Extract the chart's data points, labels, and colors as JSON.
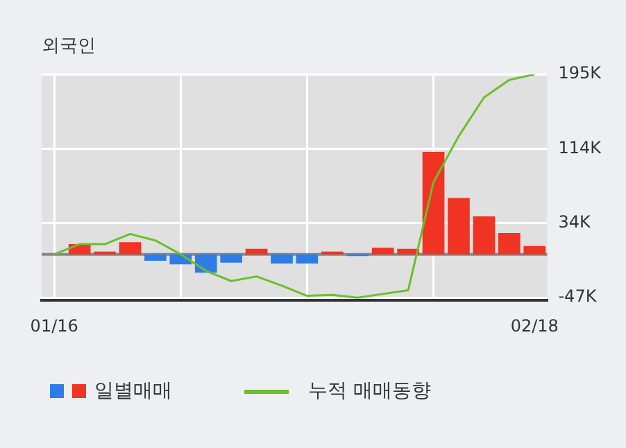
{
  "chart_data": {
    "type": "bar",
    "title": "외국인",
    "categories": [
      "01/16",
      null,
      null,
      null,
      null,
      null,
      null,
      null,
      null,
      null,
      null,
      null,
      null,
      null,
      null,
      null,
      null,
      null,
      null,
      "02/18"
    ],
    "series": [
      {
        "name": "일별매매",
        "colors": [
          "#f03323",
          "#f03323",
          "#f03323",
          "#f03323",
          "#2e7de6",
          "#2e7de6",
          "#2e7de6",
          "#2e7de6",
          "#f03323",
          "#2e7de6",
          "#2e7de6",
          "#f03323",
          "#2e7de6",
          "#f03323",
          "#f03323",
          "#f03323",
          "#f03323",
          "#f03323",
          "#f03323",
          "#f03323"
        ],
        "values": [
          0,
          11,
          3,
          13,
          -7,
          -11,
          -20,
          -9,
          6,
          -10,
          -10,
          3,
          -2,
          7,
          6,
          111,
          61,
          41,
          23,
          9
        ]
      },
      {
        "name": "누적 매매동향",
        "type": "line",
        "color": "#6abf2a",
        "values": [
          0,
          11,
          11,
          22,
          15,
          0,
          -18,
          -29,
          -24,
          -34,
          -45,
          -44,
          -47,
          -43,
          -39,
          78,
          128,
          170,
          189,
          195
        ]
      }
    ],
    "ylim": [
      -50,
      195
    ],
    "yticks": [
      {
        "value": -47,
        "label": "-47K"
      },
      {
        "value": 34,
        "label": "34K"
      },
      {
        "value": 114,
        "label": "114K"
      },
      {
        "value": 195,
        "label": "195K"
      }
    ],
    "ref_lines": [
      {
        "axis": "y",
        "value": 0,
        "color": "#888888"
      }
    ],
    "grid": true,
    "legend": "bottom",
    "marker": "none"
  }
}
